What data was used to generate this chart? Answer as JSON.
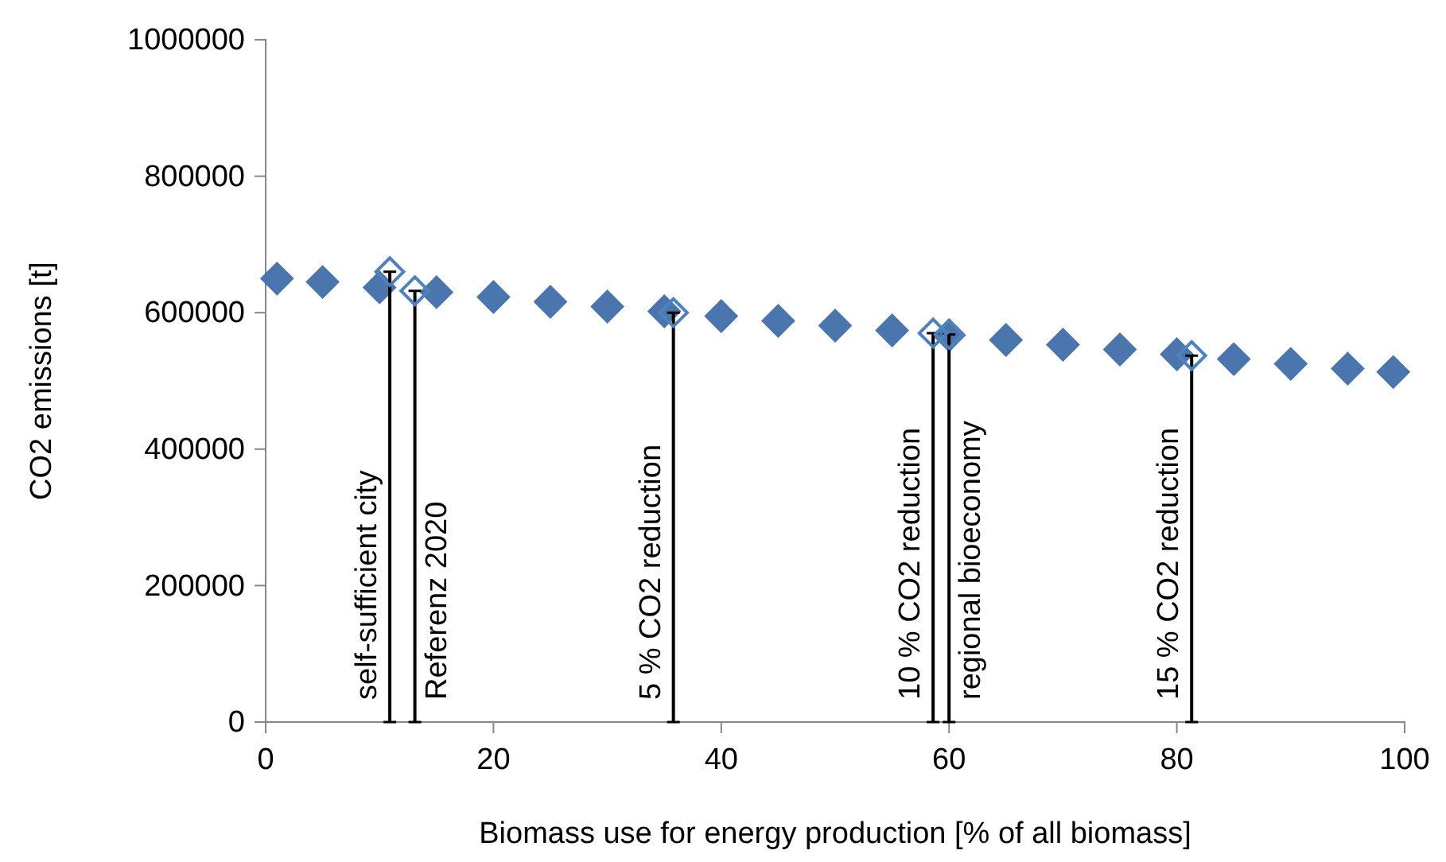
{
  "chart_data": {
    "type": "scatter",
    "xlabel": "Biomass use for energy production [% of all biomass]",
    "ylabel": "CO2 emissions [t]",
    "xlim": [
      0,
      100
    ],
    "xticks": [
      0,
      20,
      40,
      60,
      80,
      100
    ],
    "ylim": [
      0,
      1000000
    ],
    "yticks": [
      0,
      200000,
      400000,
      600000,
      800000,
      1000000
    ],
    "grid": false,
    "marker": "diamond",
    "series": [
      {
        "color": "#4a76ad",
        "x": [
          1,
          5,
          10,
          15,
          20,
          25,
          30,
          35,
          40,
          45,
          50,
          55,
          60,
          65,
          70,
          75,
          80,
          85,
          90,
          95,
          99
        ],
        "values": [
          650000,
          645000,
          637000,
          630000,
          623000,
          616000,
          609000,
          602000,
          595000,
          588000,
          581000,
          574000,
          567000,
          560000,
          553000,
          546000,
          539000,
          532000,
          525000,
          518000,
          513000
        ]
      },
      {
        "color": "#4f81bd",
        "x": [
          10.9,
          13.1,
          35.8,
          58.6,
          60,
          81.3
        ],
        "values": [
          660000,
          632000,
          600000,
          570000,
          568000,
          537000
        ],
        "errors": [
          [
            0,
            660000
          ],
          [
            0,
            632000
          ],
          [
            0,
            600000
          ],
          [
            0,
            570000
          ],
          [
            0,
            568000
          ],
          [
            0,
            537000
          ]
        ]
      }
    ],
    "annotations": [
      "self-sufficient city",
      "Referenz 2020",
      "5 % CO2 reduction",
      "10 % CO2 reduction",
      "regional bioeconomy",
      "15 % CO2 reduction"
    ]
  }
}
